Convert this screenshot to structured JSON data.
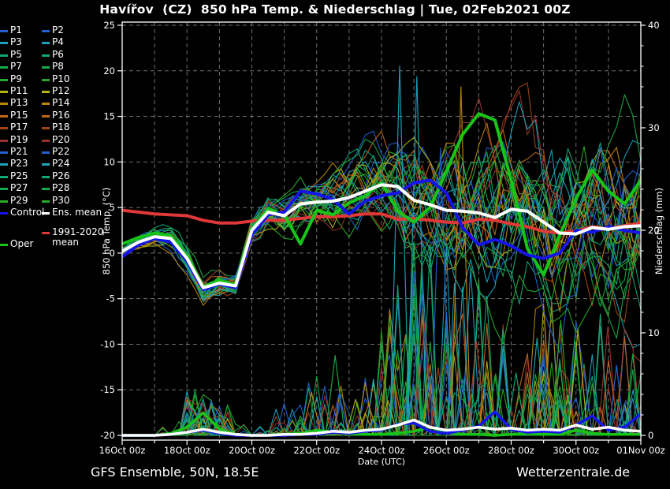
{
  "title": "Havířov  (CZ)  850 hPa Temp. & Niederschlag | Tue, 02Feb2021 00Z",
  "footer": {
    "caption_left": "GFS Ensemble, 50N, 18.5E",
    "caption_right": "Wetterzentrale.de"
  },
  "legend": {
    "member_labels": [
      "P1",
      "P2",
      "P3",
      "P4",
      "P5",
      "P6",
      "P7",
      "P8",
      "P9",
      "P10",
      "P11",
      "P12",
      "P13",
      "P14",
      "P15",
      "P16",
      "P17",
      "P18",
      "P19",
      "P20",
      "P21",
      "P22",
      "P23",
      "P24",
      "P25",
      "P26",
      "P27",
      "P28",
      "P29",
      "P30"
    ],
    "control_label": "Control",
    "ens_mean_label": "Ens. mean",
    "clim_label_line1": "1991-2020",
    "clim_label_line2": "mean",
    "oper_label": "Oper"
  },
  "chart_data": {
    "type": "line",
    "title": "Havířov (CZ) 850 hPa Temp. & Niederschlag | Tue, 02Feb2021 00Z",
    "xlabel": "Date (UTC)",
    "ylabel_left": "850 hPa Temp. (°C)",
    "ylabel_right": "Niederschlag (mm)",
    "x_tick_labels": [
      "16Oct 00z",
      "18Oct 00z",
      "20Oct 00z",
      "22Oct 00z",
      "24Oct 00z",
      "26Oct 00z",
      "28Oct 00z",
      "30Oct 00z",
      "01Nov 00z"
    ],
    "x_span_days": 16,
    "ylim_left": [
      -20,
      25
    ],
    "yticks_left": [
      25,
      20,
      15,
      10,
      5,
      0,
      -5,
      -10,
      -15,
      -20
    ],
    "ylim_right": [
      0,
      40
    ],
    "yticks_right": [
      0,
      10,
      20,
      30,
      40
    ],
    "grid": true,
    "legend_position": "outside-left",
    "colors": {
      "member_palette": [
        "#2161d0",
        "#1ba3bd",
        "#12a878",
        "#16aa47",
        "#27ab27",
        "#b3b314",
        "#b8860b",
        "#c06818",
        "#a84315",
        "#96312e"
      ],
      "control": "#1515e8",
      "ens_mean": "#ffffff",
      "clim_mean": "#e03838",
      "oper": "#18c418",
      "grid": "#6e6e6e",
      "frame": "#ffffff"
    },
    "sample_step_days": 0.5,
    "series": [
      {
        "name": "Ens. mean temp (°C)",
        "values": [
          0.2,
          1.2,
          1.8,
          1.6,
          -0.6,
          -3.8,
          -3.3,
          -3.6,
          2.5,
          4.5,
          4.1,
          5.4,
          5.6,
          5.7,
          6.1,
          6.8,
          7.5,
          7.3,
          5.8,
          5.3,
          4.7,
          4.6,
          4.4,
          3.9,
          4.8,
          4.6,
          3.4,
          2.2,
          2.1,
          2.8,
          2.6,
          2.9,
          3.0
        ]
      },
      {
        "name": "Control temp (°C)",
        "values": [
          -0.4,
          0.9,
          1.6,
          1.2,
          -0.9,
          -4.0,
          -3.4,
          -3.8,
          2.0,
          4.2,
          4.5,
          6.8,
          6.5,
          5.9,
          4.3,
          5.7,
          6.3,
          6.6,
          7.7,
          8.0,
          6.6,
          2.8,
          0.9,
          1.5,
          0.8,
          -0.2,
          -0.6,
          0.0,
          2.5,
          2.3,
          2.9,
          2.5,
          2.2
        ]
      },
      {
        "name": "Oper temp (°C)",
        "values": [
          1.0,
          1.7,
          2.2,
          1.9,
          -0.3,
          -3.7,
          -3.0,
          -3.5,
          2.6,
          4.9,
          4.2,
          1.0,
          4.7,
          4.2,
          5.5,
          6.3,
          7.7,
          4.6,
          3.4,
          5.0,
          9.0,
          13.0,
          15.3,
          14.6,
          8.0,
          0.5,
          -2.4,
          2.0,
          6.0,
          9.1,
          6.8,
          5.4,
          8.0
        ]
      },
      {
        "name": "1991-2020 mean temp (°C)",
        "values": [
          4.7,
          4.5,
          4.3,
          4.2,
          4.1,
          3.6,
          3.3,
          3.3,
          3.5,
          3.6,
          3.6,
          3.8,
          4.0,
          4.0,
          4.1,
          4.3,
          4.3,
          3.7,
          3.8,
          3.6,
          3.4,
          3.3,
          3.7,
          3.6,
          3.2,
          2.9,
          2.4,
          2.2,
          2.4,
          2.9,
          2.7,
          3.0,
          3.3
        ]
      },
      {
        "name": "Ens. mean precip (mm)",
        "values": [
          0,
          0,
          0,
          0.1,
          0.3,
          0.6,
          0.3,
          0.1,
          0,
          0,
          0.1,
          0.1,
          0.2,
          0.4,
          0.3,
          0.5,
          0.6,
          1.0,
          1.5,
          0.8,
          0.5,
          0.6,
          0.8,
          0.6,
          0.7,
          0.5,
          0.6,
          0.5,
          1.0,
          0.6,
          0.8,
          0.5,
          0.4
        ]
      },
      {
        "name": "Control precip (mm)",
        "values": [
          0,
          0,
          0,
          0.1,
          0.3,
          0.5,
          0.2,
          0,
          0,
          0,
          0,
          0.1,
          0.1,
          0.3,
          0.2,
          0.4,
          0.5,
          1.1,
          1.2,
          0.4,
          0.2,
          0.5,
          0.9,
          2.3,
          0.6,
          0.3,
          0.4,
          0.3,
          1.0,
          1.9,
          0.5,
          0.8,
          2.1
        ]
      },
      {
        "name": "Oper precip (mm)",
        "values": [
          0,
          0,
          0,
          0.2,
          0.8,
          2.2,
          0.6,
          0.1,
          0,
          0,
          0.1,
          0.2,
          0.5,
          0.3,
          0.2,
          0.1,
          0.1,
          0.2,
          0.4,
          0.8,
          0.3,
          0.1,
          0.1,
          0,
          0.1,
          0.2,
          0.1,
          0.1,
          0.5,
          0.2,
          0.1,
          0.1,
          0.1
        ]
      }
    ],
    "ensemble": {
      "member_count": 30,
      "colors_per_hue": 2,
      "seed_base": 20210202,
      "temp_spread_daily": [
        0.5,
        0.6,
        1.0,
        1.0,
        0.9,
        1.4,
        2.2,
        2.6,
        3.2,
        4.2,
        5.2,
        5.8,
        6.2,
        6.6,
        6.8,
        6.8,
        7.0
      ],
      "precip_intensity_daily": [
        0,
        0,
        1.5,
        1.2,
        0.2,
        1.0,
        2.0,
        1.8,
        3.5,
        6,
        6,
        5,
        4,
        4.5,
        4.5,
        3.5,
        3.0
      ],
      "featured_precip_spikes": [
        {
          "day": 5.84,
          "mm": 4.2,
          "color_index": 6
        },
        {
          "day": 6.57,
          "mm": 7.8,
          "color_index": 3
        },
        {
          "day": 6.69,
          "mm": 4.0,
          "color_index": 0
        },
        {
          "day": 7.2,
          "mm": 3.5,
          "color_index": 5
        },
        {
          "day": 7.6,
          "mm": 3.0,
          "color_index": 6
        },
        {
          "day": 8.2,
          "mm": 3.4,
          "color_index": 5
        },
        {
          "day": 8.4,
          "mm": 5.3,
          "color_index": 7
        },
        {
          "day": 8.56,
          "mm": 36.0,
          "color_index": 1
        },
        {
          "day": 9.09,
          "mm": 35.0,
          "color_index": 1
        },
        {
          "day": 9.33,
          "mm": 11.0,
          "color_index": 9
        },
        {
          "day": 9.82,
          "mm": 28.0,
          "color_index": 0
        },
        {
          "day": 10.0,
          "mm": 3.8,
          "color_index": 2
        },
        {
          "day": 10.45,
          "mm": 34.0,
          "color_index": 6
        },
        {
          "day": 10.57,
          "mm": 5.9,
          "color_index": 0
        },
        {
          "day": 10.79,
          "mm": 4.0,
          "color_index": 3
        },
        {
          "day": 10.93,
          "mm": 9.1,
          "color_index": 8
        },
        {
          "day": 11.52,
          "mm": 6.0,
          "color_index": 4
        },
        {
          "day": 12.15,
          "mm": 6.1,
          "color_index": 2
        },
        {
          "day": 12.8,
          "mm": 9.5,
          "color_index": 1
        },
        {
          "day": 13.53,
          "mm": 11.2,
          "color_index": 4
        },
        {
          "day": 13.96,
          "mm": 9.4,
          "color_index": 3
        },
        {
          "day": 14.06,
          "mm": 10.3,
          "color_index": 5
        },
        {
          "day": 14.98,
          "mm": 10.6,
          "color_index": 9
        },
        {
          "day": 15.27,
          "mm": 3.5,
          "color_index": 2
        },
        {
          "day": 15.54,
          "mm": 3.4,
          "color_index": 0
        },
        {
          "day": 15.76,
          "mm": 4.4,
          "color_index": 1
        }
      ]
    }
  }
}
